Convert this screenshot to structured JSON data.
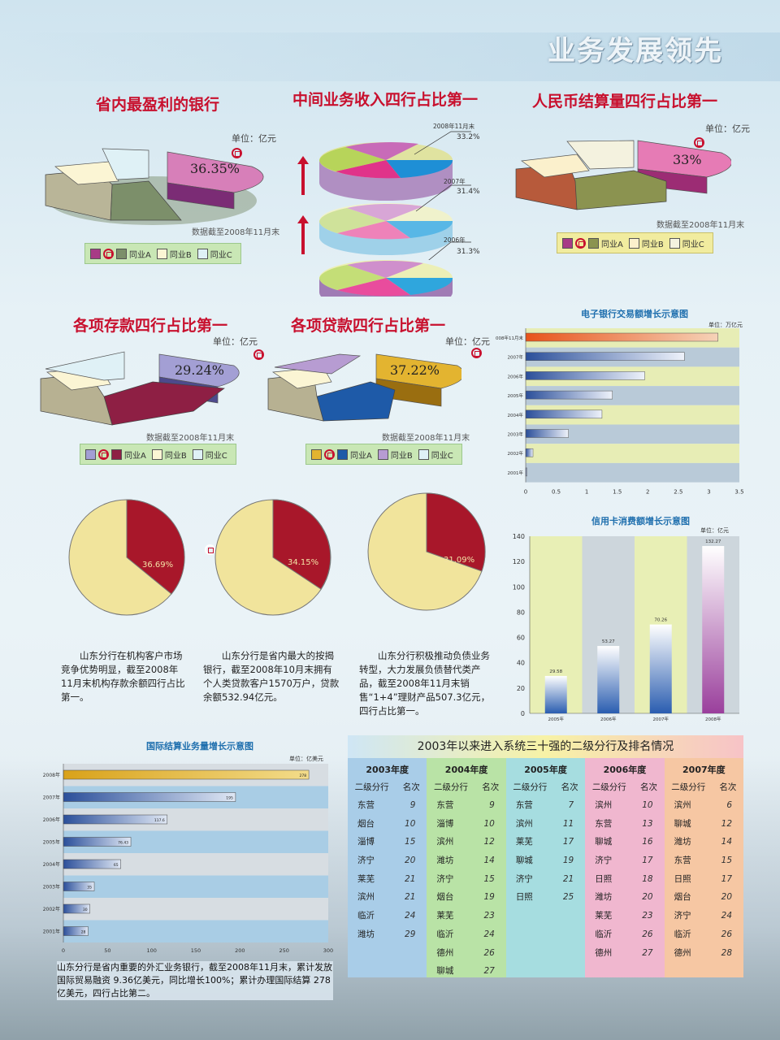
{
  "header": {
    "title": "业务发展领先"
  },
  "colors": {
    "accent_red": "#c8102e",
    "section_title": "#c8102e",
    "chart_title": "#1f6fae"
  },
  "pie_section_1": {
    "title": "省内最盈利的银行",
    "unit": "单位：亿元",
    "note": "数据截至2008年11月末",
    "legend": [
      "同业A",
      "同业B",
      "同业C"
    ],
    "value_label": "36.35%"
  },
  "pie_section_2": {
    "title": "中间业务收入四行占比第一",
    "labels": [
      {
        "year": "2008年11月末",
        "pct": "33.2%"
      },
      {
        "year": "2007年",
        "pct": "31.4%"
      },
      {
        "year": "2006年",
        "pct": "31.3%"
      }
    ]
  },
  "pie_section_3": {
    "title": "人民币结算量四行占比第一",
    "unit": "单位：亿元",
    "note": "数据截至2008年11月末",
    "legend": [
      "同业A",
      "同业B",
      "同业C"
    ],
    "value_label": "33%"
  },
  "pie_section_4": {
    "title": "各项存款四行占比第一",
    "unit": "单位：亿元",
    "note": "数据截至2008年11月末",
    "legend": [
      "同业A",
      "同业B",
      "同业C"
    ],
    "value_label": "29.24%"
  },
  "pie_section_5": {
    "title": "各项贷款四行占比第一",
    "unit": "单位：亿元",
    "note": "数据截至2008年11月末",
    "legend": [
      "同业A",
      "同业B",
      "同业C"
    ],
    "value_label": "37.22%"
  },
  "small_pies": [
    {
      "pct_label": "36.69%",
      "text": "山东分行在机构客户市场竞争优势明显，截至2008年11月末机构存款余额四行占比第一。"
    },
    {
      "pct_label": "34.15%",
      "text": "山东分行是省内最大的按揭银行，截至2008年10月末拥有个人类贷款客户1570万户，贷款余额532.94亿元。"
    },
    {
      "pct_label": "31.09%",
      "text": "山东分行积极推动负债业务转型，大力发展负债替代类产品，截至2008年11月末销售“1+4”理财产品507.3亿元，四行占比第一。"
    }
  ],
  "ebank_chart": {
    "title": "电子银行交易额增长示意图",
    "unit": "单位：万亿元"
  },
  "credit_chart": {
    "title": "信用卡消费额增长示意图",
    "unit": "单位：亿元"
  },
  "intl_chart": {
    "title": "国际结算业务量增长示意图",
    "unit": "单位：亿美元",
    "caption": "山东分行是省内重要的外汇业务银行，截至2008年11月末，累计发放国际贸易融资 9.36亿美元，同比增长100%；累计办理国际结算 278亿美元，四行占比第二。"
  },
  "ranking": {
    "title": "2003年以来进入系统三十强的二级分行及排名情况",
    "sub_headers": [
      "二级分行",
      "名次"
    ],
    "columns": [
      {
        "year": "2003年度",
        "bg": "#a9cde8",
        "rows": [
          [
            "东营",
            "9"
          ],
          [
            "烟台",
            "10"
          ],
          [
            "淄博",
            "15"
          ],
          [
            "济宁",
            "20"
          ],
          [
            "莱芜",
            "21"
          ],
          [
            "滨州",
            "21"
          ],
          [
            "临沂",
            "24"
          ],
          [
            "潍坊",
            "29"
          ]
        ]
      },
      {
        "year": "2004年度",
        "bg": "#b9e3a6",
        "rows": [
          [
            "东营",
            "9"
          ],
          [
            "淄博",
            "10"
          ],
          [
            "滨州",
            "12"
          ],
          [
            "潍坊",
            "14"
          ],
          [
            "济宁",
            "15"
          ],
          [
            "烟台",
            "19"
          ],
          [
            "莱芜",
            "23"
          ],
          [
            "临沂",
            "24"
          ],
          [
            "德州",
            "26"
          ],
          [
            "聊城",
            "27"
          ]
        ]
      },
      {
        "year": "2005年度",
        "bg": "#a6dde0",
        "rows": [
          [
            "东营",
            "7"
          ],
          [
            "滨州",
            "11"
          ],
          [
            "莱芜",
            "17"
          ],
          [
            "聊城",
            "19"
          ],
          [
            "济宁",
            "21"
          ],
          [
            "日照",
            "25"
          ]
        ]
      },
      {
        "year": "2006年度",
        "bg": "#f0b7cf",
        "rows": [
          [
            "滨州",
            "10"
          ],
          [
            "东营",
            "13"
          ],
          [
            "聊城",
            "16"
          ],
          [
            "济宁",
            "17"
          ],
          [
            "日照",
            "18"
          ],
          [
            "潍坊",
            "20"
          ],
          [
            "莱芜",
            "23"
          ],
          [
            "临沂",
            "26"
          ],
          [
            "德州",
            "27"
          ]
        ]
      },
      {
        "year": "2007年度",
        "bg": "#f6c7a3",
        "rows": [
          [
            "滨州",
            "6"
          ],
          [
            "聊城",
            "12"
          ],
          [
            "潍坊",
            "14"
          ],
          [
            "东营",
            "15"
          ],
          [
            "日照",
            "17"
          ],
          [
            "烟台",
            "20"
          ],
          [
            "济宁",
            "24"
          ],
          [
            "临沂",
            "26"
          ],
          [
            "德州",
            "28"
          ]
        ]
      }
    ]
  },
  "chart_data": [
    {
      "type": "bar",
      "title": "电子银行交易额增长示意图",
      "orientation": "horizontal",
      "categories": [
        "2001年",
        "2002年",
        "2003年",
        "2004年",
        "2005年",
        "2006年",
        "2007年",
        "2008年11月末"
      ],
      "values": [
        0.02,
        0.12,
        0.7,
        1.25,
        1.42,
        1.95,
        2.6,
        3.15
      ],
      "xlim": [
        0,
        3.5
      ],
      "ticks": [
        "0",
        "0.5",
        "1",
        "1.5",
        "2",
        "2.5",
        "3",
        "3.5"
      ],
      "unit": "单位：万亿元"
    },
    {
      "type": "bar",
      "title": "信用卡消费额增长示意图",
      "categories": [
        "2005年",
        "2006年",
        "2007年",
        "2008年"
      ],
      "values": [
        29.58,
        53.27,
        70.26,
        132.27
      ],
      "value_labels": [
        "29.58",
        "53.27",
        "70.26",
        "132.27"
      ],
      "ylim": [
        0,
        140
      ],
      "ticks": [
        "0",
        "20",
        "40",
        "60",
        "80",
        "100",
        "120",
        "140"
      ],
      "unit": "单位：亿元"
    },
    {
      "type": "bar",
      "title": "国际结算业务量增长示意图",
      "orientation": "horizontal",
      "categories": [
        "2001年",
        "2002年",
        "2003年",
        "2004年",
        "2005年",
        "2006年",
        "2007年",
        "2008年"
      ],
      "values": [
        28,
        30,
        35,
        65,
        76.43,
        117.6,
        195,
        278
      ],
      "value_labels": [
        "28",
        "30",
        "35",
        "65",
        "76.43",
        "117.6",
        "195",
        "278"
      ],
      "xlim": [
        0,
        300
      ],
      "ticks": [
        "0",
        "50",
        "100",
        "150",
        "200",
        "250",
        "300"
      ],
      "unit": "单位：亿美元"
    }
  ]
}
